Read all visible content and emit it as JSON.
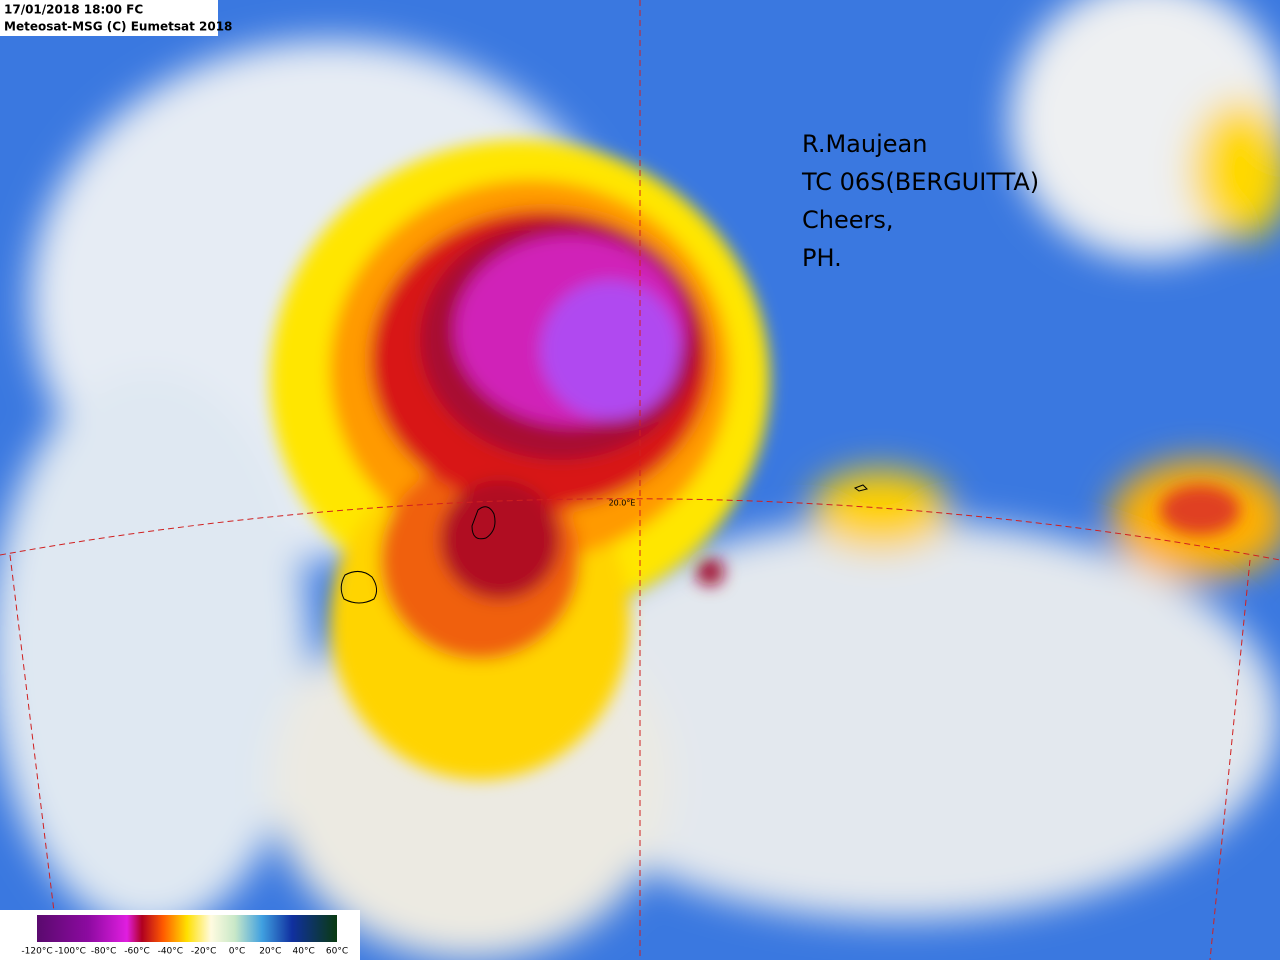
{
  "header": {
    "datetime": "17/01/2018 18:00  FC",
    "source": "Meteosat-MSG (C) Eumetsat 2018"
  },
  "annotation": {
    "lines": [
      "R.Maujean",
      "TC 06S(BERGUITTA)",
      "Cheers,",
      "PH."
    ]
  },
  "grid_label": "20.0°E",
  "colorbar": {
    "ticks": [
      "-120°C",
      "-100°C",
      "-80°C",
      "-60°C",
      "-40°C",
      "-20°C",
      "0°C",
      "20°C",
      "40°C",
      "60°C"
    ]
  }
}
